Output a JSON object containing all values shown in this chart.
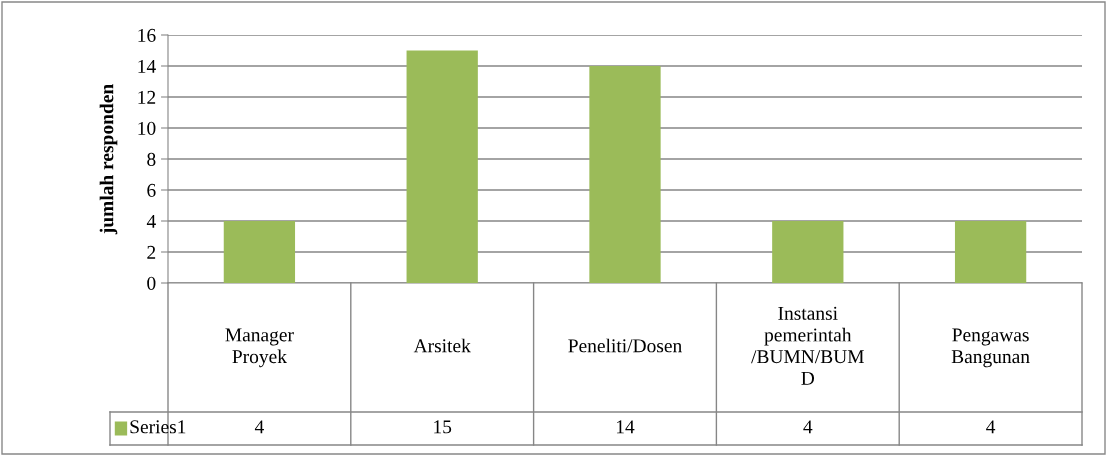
{
  "chart_data": {
    "type": "bar",
    "ylabel": "jumlah responden",
    "categories": [
      "Manager\nProyek",
      "Arsitek",
      "Peneliti/Dosen",
      "Instansi\npemerintah\n/BUMN/BUM\nD",
      "Pengawas\nBangunan"
    ],
    "series": [
      {
        "name": "Series1",
        "color": "#9bbb59",
        "values": [
          4,
          15,
          14,
          4,
          4
        ]
      }
    ],
    "ylim": [
      0,
      16
    ],
    "yticks": [
      0,
      2,
      4,
      6,
      8,
      10,
      12,
      14,
      16
    ],
    "grid": "y",
    "data_labels": true,
    "legend": "bottom"
  }
}
